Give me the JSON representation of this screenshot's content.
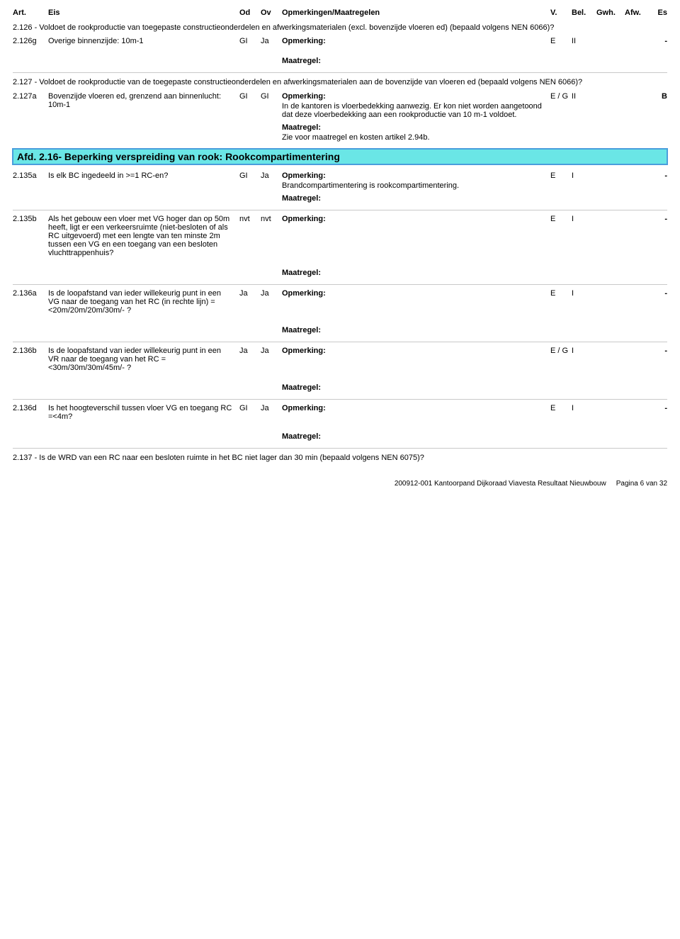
{
  "header": {
    "art": "Art.",
    "eis": "Eis",
    "od": "Od",
    "ov": "Ov",
    "opm": "Opmerkingen/Maatregelen",
    "v": "V.",
    "bel": "Bel.",
    "gwh": "Gwh.",
    "afw": "Afw.",
    "es": "Es"
  },
  "labels": {
    "opm": "Opmerking:",
    "maat": "Maatregel:"
  },
  "section126": "2.126 - Voldoet de rookproductie van toegepaste constructieonderdelen en afwerkingsmaterialen (excl. bovenzijde vloeren ed) (bepaald volgens NEN 6066)?",
  "row126g": {
    "art": "2.126g",
    "eis": "Overige binnenzijde: 10m-1",
    "od": "GI",
    "ov": "Ja",
    "v": "E",
    "bel": "II",
    "es": "-"
  },
  "section127": "2.127 - Voldoet de rookproductie van de toegepaste constructieonderdelen en afwerkingsmaterialen aan de bovenzijde van vloeren ed (bepaald volgens NEN 6066)?",
  "row127a": {
    "art": "2.127a",
    "eis": "Bovenzijde vloeren ed, grenzend aan binnenlucht: 10m-1",
    "od": "GI",
    "ov": "GI",
    "opm_text": "In de kantoren is vloerbedekking aanwezig. Er kon niet worden aangetoond dat deze vloerbedekking aan een rookproductie van 10 m-1 voldoet.",
    "maat_text": "Zie voor maatregel en kosten artikel 2.94b.",
    "v": "E / G",
    "bel": "II",
    "es": "B"
  },
  "heading216": "Afd. 2.16- Beperking verspreiding van rook: Rookcompartimentering",
  "row135a": {
    "art": "2.135a",
    "eis": "Is elk BC ingedeeld in >=1 RC-en?",
    "od": "GI",
    "ov": "Ja",
    "opm_text": "Brandcompartimentering is rookcompartimentering.",
    "v": "E",
    "bel": "I",
    "es": "-"
  },
  "row135b": {
    "art": "2.135b",
    "eis": "Als het gebouw een vloer met VG hoger dan op 50m heeft, ligt er een verkeersruimte (niet-besloten of als RC uitgevoerd) met een lengte van ten minste 2m tussen een VG en een toegang van een besloten vluchttrappenhuis?",
    "od": "nvt",
    "ov": "nvt",
    "v": "E",
    "bel": "I",
    "es": "-"
  },
  "row136a": {
    "art": "2.136a",
    "eis": "Is de loopafstand van ieder willekeurig punt in een VG naar de toegang van het RC (in rechte lijn) =<20m/20m/20m/30m/- ?",
    "od": "Ja",
    "ov": "Ja",
    "v": "E",
    "bel": "I",
    "es": "-"
  },
  "row136b": {
    "art": "2.136b",
    "eis": "Is de loopafstand van ieder willekeurig punt in een VR naar  de toegang van het RC =<30m/30m/30m/45m/- ?",
    "od": "Ja",
    "ov": "Ja",
    "v": "E / G",
    "bel": "I",
    "es": "-"
  },
  "row136d": {
    "art": "2.136d",
    "eis": "Is het hoogteverschil tussen vloer VG en toegang RC =<4m?",
    "od": "GI",
    "ov": "Ja",
    "v": "E",
    "bel": "I",
    "es": "-"
  },
  "section137": "2.137 - Is de WRD van een RC naar een besloten ruimte in het BC niet lager dan 30 min (bepaald volgens NEN 6075)?",
  "footer": {
    "left": "200912-001  Kantoorpand Dijkoraad Viavesta   Resultaat Nieuwbouw",
    "right": "Pagina 6 van 32"
  }
}
